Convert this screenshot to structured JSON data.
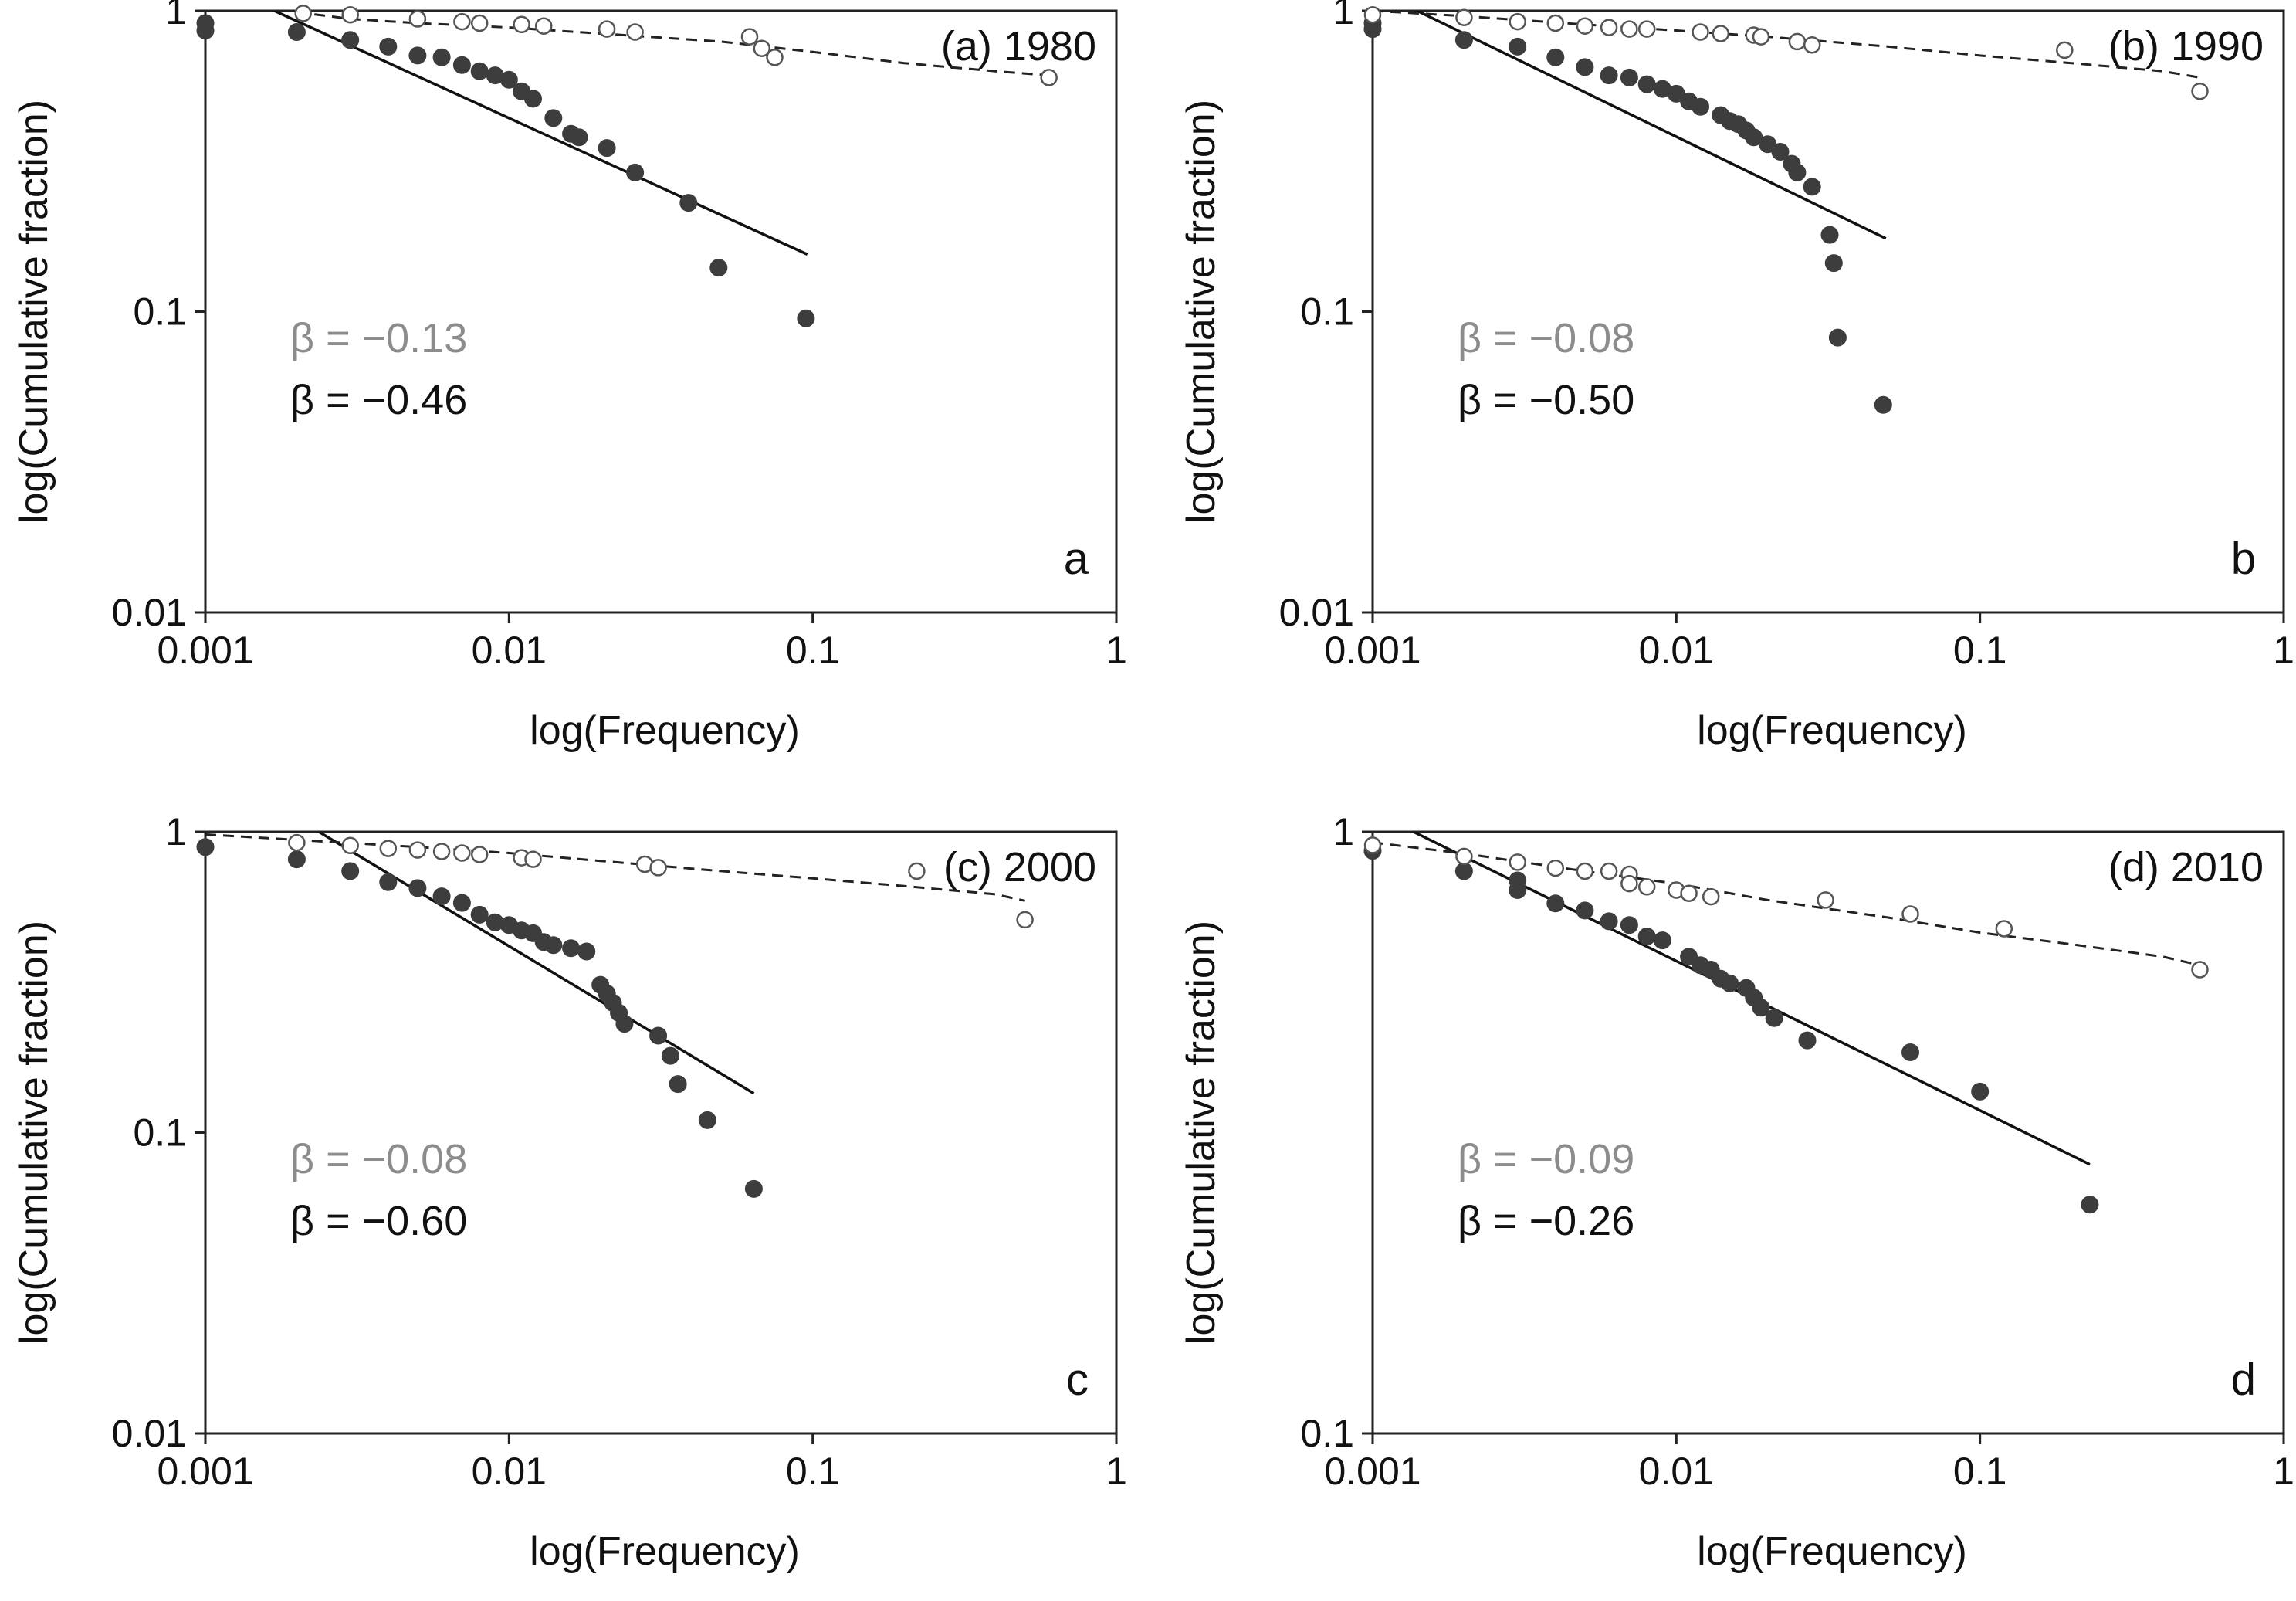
{
  "figure": {
    "x_axis_label": "log(Frequency)",
    "y_axis_label": "log(Cumulative fraction)",
    "colors": {
      "filled_points": "#3d3d3d",
      "open_points_stroke": "#555555",
      "fit_solid": "#111111",
      "fit_dashed": "#222222",
      "beta_open_text": "#8c8c8c",
      "beta_filled_text": "#111111",
      "axis": "#222222"
    }
  },
  "chart_data": [
    {
      "type": "scatter",
      "panel_letter": "a",
      "title": "(a) 1980",
      "beta_open": "β = −0.13",
      "beta_filled": "β = −0.46",
      "xscale": "log",
      "yscale": "log",
      "xlim": [
        0.001,
        1
      ],
      "ylim": [
        0.01,
        1
      ],
      "x_ticks": [
        0.001,
        0.01,
        0.1,
        1
      ],
      "x_tick_labels": [
        "0.001",
        "0.01",
        "0.1",
        "1"
      ],
      "y_ticks": [
        0.01,
        0.1,
        1
      ],
      "y_tick_labels": [
        "0.01",
        "0.1",
        "1"
      ],
      "series": [
        {
          "name": "filled",
          "marker": "filled-circle",
          "x": [
            0.001,
            0.001,
            0.002,
            0.003,
            0.004,
            0.005,
            0.006,
            0.007,
            0.008,
            0.009,
            0.01,
            0.011,
            0.012,
            0.014,
            0.016,
            0.017,
            0.021,
            0.026,
            0.039,
            0.049,
            0.095
          ],
          "y": [
            0.91,
            0.86,
            0.85,
            0.8,
            0.76,
            0.71,
            0.7,
            0.66,
            0.63,
            0.61,
            0.59,
            0.54,
            0.51,
            0.44,
            0.39,
            0.38,
            0.35,
            0.29,
            0.23,
            0.14,
            0.095
          ]
        },
        {
          "name": "open",
          "marker": "open-circle",
          "x": [
            0.0021,
            0.003,
            0.005,
            0.007,
            0.008,
            0.011,
            0.013,
            0.021,
            0.026,
            0.062,
            0.068,
            0.075,
            0.6
          ],
          "y": [
            0.98,
            0.97,
            0.94,
            0.92,
            0.91,
            0.9,
            0.89,
            0.87,
            0.85,
            0.82,
            0.75,
            0.7,
            0.6
          ]
        },
        {
          "name": "fit-filled",
          "line": "solid",
          "x": [
            0.0012,
            0.096
          ],
          "y": [
            1.17,
            0.155
          ]
        },
        {
          "name": "fit-open",
          "line": "dashed",
          "x": [
            0.002,
            0.003,
            0.005,
            0.01,
            0.02,
            0.05,
            0.1,
            0.2,
            0.4,
            0.6
          ],
          "y": [
            0.99,
            0.94,
            0.91,
            0.88,
            0.84,
            0.79,
            0.73,
            0.67,
            0.63,
            0.61
          ]
        }
      ]
    },
    {
      "type": "scatter",
      "panel_letter": "b",
      "title": "(b) 1990",
      "beta_open": "β = −0.08",
      "beta_filled": "β = −0.50",
      "xscale": "log",
      "yscale": "log",
      "xlim": [
        0.001,
        1
      ],
      "ylim": [
        0.01,
        1
      ],
      "x_ticks": [
        0.001,
        0.01,
        0.1,
        1
      ],
      "x_tick_labels": [
        "0.001",
        "0.01",
        "0.1",
        "1"
      ],
      "y_ticks": [
        0.01,
        0.1,
        1
      ],
      "y_tick_labels": [
        "0.01",
        "0.1",
        "1"
      ],
      "series": [
        {
          "name": "filled",
          "marker": "filled-circle",
          "x": [
            0.001,
            0.001,
            0.002,
            0.003,
            0.004,
            0.005,
            0.006,
            0.007,
            0.008,
            0.009,
            0.01,
            0.011,
            0.012,
            0.014,
            0.015,
            0.016,
            0.017,
            0.018,
            0.02,
            0.022,
            0.024,
            0.025,
            0.028,
            0.032,
            0.033,
            0.034,
            0.048
          ],
          "y": [
            0.91,
            0.87,
            0.8,
            0.76,
            0.7,
            0.65,
            0.61,
            0.6,
            0.57,
            0.55,
            0.53,
            0.5,
            0.48,
            0.45,
            0.43,
            0.42,
            0.4,
            0.38,
            0.36,
            0.34,
            0.31,
            0.29,
            0.26,
            0.18,
            0.145,
            0.082,
            0.049
          ]
        },
        {
          "name": "open",
          "marker": "open-circle",
          "x": [
            0.001,
            0.002,
            0.003,
            0.004,
            0.005,
            0.006,
            0.007,
            0.008,
            0.012,
            0.014,
            0.018,
            0.019,
            0.025,
            0.028,
            0.19,
            0.53
          ],
          "y": [
            0.97,
            0.95,
            0.92,
            0.91,
            0.89,
            0.88,
            0.87,
            0.87,
            0.85,
            0.84,
            0.83,
            0.82,
            0.79,
            0.77,
            0.74,
            0.54
          ]
        },
        {
          "name": "fit-filled",
          "line": "solid",
          "x": [
            0.001,
            0.049
          ],
          "y": [
            1.18,
            0.175
          ]
        },
        {
          "name": "fit-open",
          "line": "dashed",
          "x": [
            0.001,
            0.002,
            0.005,
            0.01,
            0.02,
            0.05,
            0.1,
            0.2,
            0.4,
            0.53
          ],
          "y": [
            1.0,
            0.96,
            0.9,
            0.86,
            0.82,
            0.76,
            0.71,
            0.67,
            0.63,
            0.6
          ]
        }
      ]
    },
    {
      "type": "scatter",
      "panel_letter": "c",
      "title": "(c) 2000",
      "beta_open": "β = −0.08",
      "beta_filled": "β = −0.60",
      "xscale": "log",
      "yscale": "log",
      "xlim": [
        0.001,
        1
      ],
      "ylim": [
        0.01,
        1
      ],
      "x_ticks": [
        0.001,
        0.01,
        0.1,
        1
      ],
      "x_tick_labels": [
        "0.001",
        "0.01",
        "0.1",
        "1"
      ],
      "y_ticks": [
        0.01,
        0.1,
        1
      ],
      "y_tick_labels": [
        "0.01",
        "0.1",
        "1"
      ],
      "series": [
        {
          "name": "filled",
          "marker": "filled-circle",
          "x": [
            0.001,
            0.002,
            0.003,
            0.004,
            0.005,
            0.006,
            0.007,
            0.008,
            0.009,
            0.01,
            0.011,
            0.012,
            0.013,
            0.014,
            0.016,
            0.018,
            0.02,
            0.021,
            0.022,
            0.023,
            0.024,
            0.031,
            0.034,
            0.036,
            0.045,
            0.064
          ],
          "y": [
            0.89,
            0.81,
            0.74,
            0.68,
            0.65,
            0.61,
            0.58,
            0.53,
            0.5,
            0.49,
            0.47,
            0.46,
            0.43,
            0.42,
            0.41,
            0.4,
            0.31,
            0.29,
            0.27,
            0.25,
            0.23,
            0.21,
            0.18,
            0.145,
            0.11,
            0.065
          ]
        },
        {
          "name": "open",
          "marker": "open-circle",
          "x": [
            0.002,
            0.003,
            0.004,
            0.005,
            0.006,
            0.007,
            0.008,
            0.011,
            0.012,
            0.028,
            0.031,
            0.22,
            0.5
          ],
          "y": [
            0.92,
            0.9,
            0.88,
            0.87,
            0.86,
            0.85,
            0.84,
            0.82,
            0.81,
            0.78,
            0.76,
            0.74,
            0.51
          ]
        },
        {
          "name": "fit-filled",
          "line": "solid",
          "x": [
            0.0018,
            0.064
          ],
          "y": [
            1.18,
            0.135
          ]
        },
        {
          "name": "fit-open",
          "line": "dashed",
          "x": [
            0.001,
            0.002,
            0.005,
            0.01,
            0.02,
            0.05,
            0.1,
            0.2,
            0.4,
            0.5
          ],
          "y": [
            0.98,
            0.94,
            0.89,
            0.85,
            0.8,
            0.74,
            0.7,
            0.66,
            0.62,
            0.59
          ]
        }
      ]
    },
    {
      "type": "scatter",
      "panel_letter": "d",
      "title": "(d) 2010",
      "beta_open": "β = −0.09",
      "beta_filled": "β = −0.26",
      "xscale": "log",
      "yscale": "log",
      "xlim": [
        0.001,
        1
      ],
      "ylim": [
        0.1,
        1
      ],
      "x_ticks": [
        0.001,
        0.01,
        0.1,
        1
      ],
      "x_tick_labels": [
        "0.001",
        "0.01",
        "0.1",
        "1"
      ],
      "y_ticks": [
        0.1,
        1
      ],
      "y_tick_labels": [
        "0.1",
        "1"
      ],
      "series": [
        {
          "name": "filled",
          "marker": "filled-circle",
          "x": [
            0.001,
            0.002,
            0.003,
            0.003,
            0.004,
            0.005,
            0.006,
            0.007,
            0.008,
            0.009,
            0.011,
            0.012,
            0.013,
            0.014,
            0.015,
            0.017,
            0.018,
            0.019,
            0.021,
            0.027,
            0.059,
            0.1,
            0.23
          ],
          "y": [
            0.93,
            0.86,
            0.83,
            0.8,
            0.76,
            0.74,
            0.71,
            0.7,
            0.67,
            0.66,
            0.62,
            0.6,
            0.59,
            0.57,
            0.56,
            0.55,
            0.53,
            0.51,
            0.49,
            0.45,
            0.43,
            0.37,
            0.24
          ]
        },
        {
          "name": "open",
          "marker": "open-circle",
          "x": [
            0.001,
            0.002,
            0.003,
            0.004,
            0.005,
            0.006,
            0.007,
            0.007,
            0.008,
            0.01,
            0.011,
            0.013,
            0.031,
            0.059,
            0.12,
            0.53
          ],
          "y": [
            0.95,
            0.91,
            0.89,
            0.87,
            0.86,
            0.86,
            0.85,
            0.82,
            0.81,
            0.8,
            0.79,
            0.78,
            0.77,
            0.73,
            0.69,
            0.59
          ]
        },
        {
          "name": "fit-filled",
          "line": "solid",
          "x": [
            0.001,
            0.23
          ],
          "y": [
            1.08,
            0.28
          ]
        },
        {
          "name": "fit-open",
          "line": "dashed",
          "x": [
            0.001,
            0.002,
            0.005,
            0.01,
            0.02,
            0.05,
            0.1,
            0.2,
            0.4,
            0.53
          ],
          "y": [
            0.96,
            0.92,
            0.86,
            0.82,
            0.77,
            0.72,
            0.68,
            0.65,
            0.62,
            0.6
          ]
        }
      ]
    }
  ]
}
